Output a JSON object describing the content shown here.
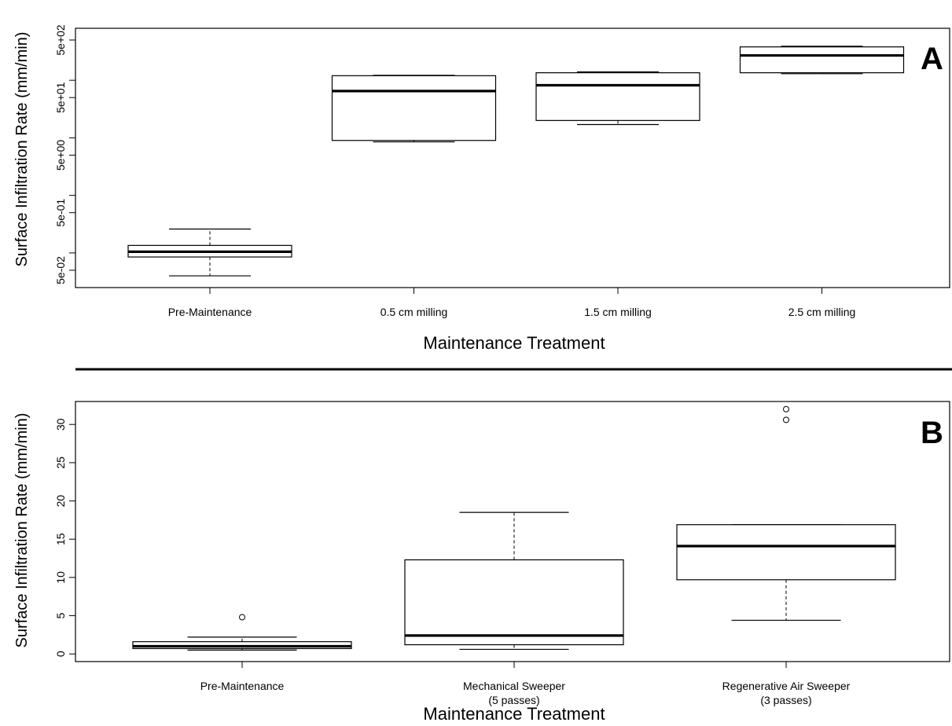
{
  "chart_data": [
    {
      "type": "box",
      "panel_label": "A",
      "xlabel": "Maintenance Treatment",
      "ylabel": "Surface Infiltration Rate (mm/min)",
      "yscale": "log",
      "ylim": [
        0.025,
        800
      ],
      "yticks": [
        {
          "value": 0.05,
          "label": "5e-02"
        },
        {
          "value": 0.5,
          "label": "5e-01"
        },
        {
          "value": 5,
          "label": "5e+00"
        },
        {
          "value": 50,
          "label": "5e+01"
        },
        {
          "value": 500,
          "label": "5e+02"
        }
      ],
      "ytick_unlabeled": [
        0.1,
        1,
        10,
        100
      ],
      "categories": [
        "Pre-Maintenance",
        "0.5 cm milling",
        "1.5 cm milling",
        "2.5 cm milling"
      ],
      "boxes": [
        {
          "min": 0.04,
          "q1": 0.085,
          "median": 0.105,
          "q3": 0.135,
          "max": 0.26,
          "outliers": []
        },
        {
          "min": 8.5,
          "q1": 9,
          "median": 65,
          "q3": 120,
          "max": 122,
          "outliers": []
        },
        {
          "min": 17,
          "q1": 20,
          "median": 82,
          "q3": 135,
          "max": 140,
          "outliers": []
        },
        {
          "min": 130,
          "q1": 135,
          "median": 270,
          "q3": 380,
          "max": 390,
          "outliers": []
        }
      ],
      "grid": false
    },
    {
      "type": "box",
      "panel_label": "B",
      "xlabel": "Maintenance Treatment",
      "ylabel": "Surface Infiltration Rate (mm/min)",
      "yscale": "linear",
      "ylim": [
        -1,
        33
      ],
      "yticks": [
        0,
        5,
        10,
        15,
        20,
        25,
        30
      ],
      "categories": [
        [
          "Pre-Maintenance"
        ],
        [
          "Mechanical Sweeper",
          "(5 passes)"
        ],
        [
          "Regenerative Air Sweeper",
          "(3 passes)"
        ]
      ],
      "boxes": [
        {
          "min": 0.5,
          "q1": 0.7,
          "median": 1.0,
          "q3": 1.6,
          "max": 2.2,
          "outliers": [
            4.8
          ]
        },
        {
          "min": 0.6,
          "q1": 1.2,
          "median": 2.4,
          "q3": 12.3,
          "max": 18.5,
          "outliers": []
        },
        {
          "min": 4.4,
          "q1": 9.7,
          "median": 14.1,
          "q3": 16.9,
          "max": 16.9,
          "outliers": [
            30.6,
            32
          ]
        }
      ],
      "grid": false
    }
  ]
}
